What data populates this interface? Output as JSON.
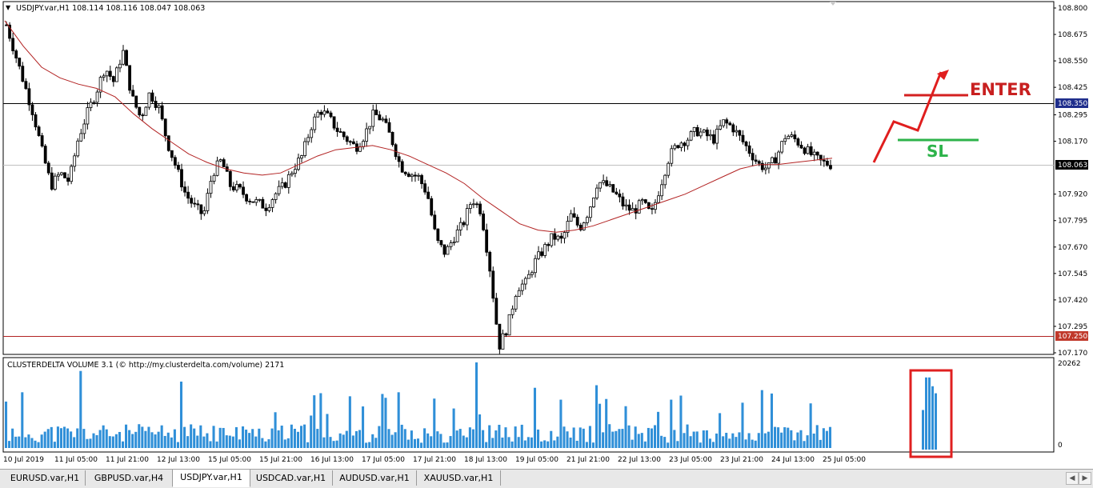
{
  "chart": {
    "symbol_header": "USDJPY.var,H1  108.114 108.116 108.047 108.063",
    "indicator_header": "CLUSTERDELTA VOLUME 3.1 (© http://my.clusterdelta.com/volume) 2171",
    "volume_max_label": "20262",
    "volume_min_label": "0",
    "price_axis": [
      "108.800",
      "108.675",
      "108.550",
      "108.425",
      "108.295",
      "108.170",
      "107.920",
      "107.795",
      "107.670",
      "107.545",
      "107.420",
      "107.295",
      "107.170"
    ],
    "price_highlights": {
      "level_high": "108.350",
      "current": "108.063",
      "level_low": "107.250"
    },
    "time_axis": [
      "10 Jul 2019",
      "11 Jul 05:00",
      "11 Jul 21:00",
      "12 Jul 13:00",
      "15 Jul 05:00",
      "15 Jul 21:00",
      "16 Jul 13:00",
      "17 Jul 05:00",
      "17 Jul 21:00",
      "18 Jul 13:00",
      "19 Jul 05:00",
      "21 Jul 21:00",
      "22 Jul 13:00",
      "23 Jul 05:00",
      "23 Jul 21:00",
      "24 Jul 13:00",
      "25 Jul 05:00"
    ],
    "annotations": {
      "enter": "ENTER",
      "sl": "SL"
    },
    "colors": {
      "candles": "#000000",
      "ma": "#b22222",
      "volume": "#2f8fd8",
      "enter": "#d42020",
      "sl": "#2db34a",
      "box": "#e02020"
    }
  },
  "tabs": [
    "EURUSD.var,H1",
    "GBPUSD.var,H4",
    "USDJPY.var,H1",
    "USDCAD.var,H1",
    "AUDUSD.var,H1",
    "XAUUSD.var,H1"
  ],
  "active_tab": "USDJPY.var,H1",
  "chart_data": {
    "type": "candlestick",
    "title": "USDJPY.var,H1",
    "ylim": [
      107.17,
      108.8
    ],
    "horizontal_levels": [
      108.35,
      107.25
    ],
    "current_price": 108.063,
    "moving_average": [
      [
        0,
        108.74
      ],
      [
        20,
        108.62
      ],
      [
        40,
        108.52
      ],
      [
        60,
        108.47
      ],
      [
        80,
        108.44
      ],
      [
        100,
        108.42
      ],
      [
        120,
        108.38
      ],
      [
        140,
        108.3
      ],
      [
        160,
        108.23
      ],
      [
        180,
        108.17
      ],
      [
        200,
        108.11
      ],
      [
        220,
        108.07
      ],
      [
        240,
        108.04
      ],
      [
        260,
        108.02
      ],
      [
        280,
        108.01
      ],
      [
        300,
        108.02
      ],
      [
        320,
        108.06
      ],
      [
        340,
        108.1
      ],
      [
        360,
        108.13
      ],
      [
        380,
        108.14
      ],
      [
        400,
        108.15
      ],
      [
        420,
        108.13
      ],
      [
        440,
        108.1
      ],
      [
        460,
        108.06
      ],
      [
        480,
        108.02
      ],
      [
        500,
        107.97
      ],
      [
        520,
        107.9
      ],
      [
        540,
        107.84
      ],
      [
        560,
        107.78
      ],
      [
        580,
        107.75
      ],
      [
        600,
        107.74
      ],
      [
        620,
        107.75
      ],
      [
        640,
        107.77
      ],
      [
        660,
        107.8
      ],
      [
        680,
        107.83
      ],
      [
        700,
        107.86
      ],
      [
        720,
        107.89
      ],
      [
        740,
        107.92
      ],
      [
        760,
        107.96
      ],
      [
        780,
        108.0
      ],
      [
        800,
        108.04
      ],
      [
        820,
        108.06
      ],
      [
        840,
        108.06
      ],
      [
        860,
        108.07
      ],
      [
        880,
        108.08
      ],
      [
        900,
        108.09
      ]
    ],
    "closes": [
      108.72,
      108.58,
      108.44,
      108.3,
      108.12,
      107.96,
      108.02,
      107.98,
      108.18,
      108.3,
      108.4,
      108.52,
      108.45,
      108.6,
      108.38,
      108.28,
      108.4,
      108.33,
      108.16,
      108.04,
      107.92,
      107.86,
      107.82,
      108.02,
      108.08,
      107.96,
      107.94,
      107.9,
      107.88,
      107.86,
      107.92,
      107.96,
      108.04,
      108.1,
      108.24,
      108.32,
      108.28,
      108.22,
      108.18,
      108.14,
      108.2,
      108.3,
      108.27,
      108.18,
      108.05,
      108.02,
      108.0,
      107.92,
      107.7,
      107.64,
      107.72,
      107.78,
      107.9,
      107.84,
      107.56,
      107.2,
      107.3,
      107.48,
      107.5,
      107.6,
      107.66,
      107.72,
      107.7,
      107.82,
      107.76,
      107.84,
      107.98,
      107.96,
      107.92,
      107.86,
      107.84,
      107.88,
      107.82,
      107.96,
      108.1,
      108.16,
      108.18,
      108.22,
      108.2,
      108.18,
      108.26,
      108.24,
      108.18,
      108.12,
      108.06,
      108.04,
      108.1,
      108.2,
      108.18,
      108.14,
      108.1,
      108.07,
      108.06
    ],
    "volume_x_labels": [
      "10 Jul 2019",
      "11 Jul 05:00",
      "11 Jul 21:00",
      "12 Jul 13:00",
      "15 Jul 05:00",
      "15 Jul 21:00",
      "16 Jul 13:00",
      "17 Jul 05:00",
      "17 Jul 21:00",
      "18 Jul 13:00",
      "19 Jul 05:00",
      "21 Jul 21:00",
      "22 Jul 13:00",
      "23 Jul 05:00",
      "23 Jul 21:00",
      "24 Jul 13:00",
      "25 Jul 05:00"
    ],
    "volume_max": 20262
  }
}
